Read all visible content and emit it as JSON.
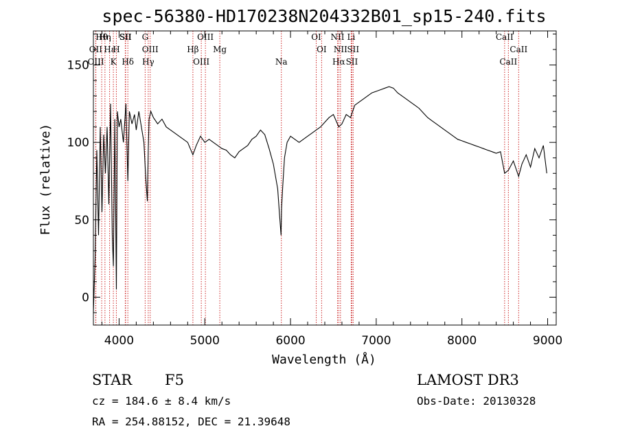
{
  "chart_data": {
    "type": "line",
    "title": "spec-56380-HD170238N204332B01_sp15-240.fits",
    "xlabel": "Wavelength (Å)",
    "ylabel": "Flux (relative)",
    "xlim": [
      3700,
      9100
    ],
    "ylim": [
      -18,
      172
    ],
    "xticks": [
      4000,
      5000,
      6000,
      7000,
      8000,
      9000
    ],
    "yticks": [
      0,
      50,
      100,
      150
    ],
    "series": [
      {
        "name": "flux",
        "x": [
          3700,
          3720,
          3740,
          3760,
          3780,
          3800,
          3820,
          3840,
          3860,
          3880,
          3900,
          3920,
          3933,
          3950,
          3968,
          3980,
          4000,
          4020,
          4050,
          4080,
          4102,
          4120,
          4150,
          4180,
          4200,
          4230,
          4260,
          4290,
          4310,
          4330,
          4340,
          4350,
          4370,
          4400,
          4450,
          4500,
          4550,
          4600,
          4650,
          4700,
          4750,
          4800,
          4861,
          4900,
          4950,
          5000,
          5050,
          5100,
          5150,
          5200,
          5250,
          5300,
          5350,
          5400,
          5450,
          5500,
          5550,
          5600,
          5650,
          5700,
          5750,
          5800,
          5850,
          5870,
          5890,
          5896,
          5910,
          5930,
          5960,
          6000,
          6050,
          6100,
          6150,
          6200,
          6250,
          6300,
          6350,
          6400,
          6450,
          6500,
          6563,
          6600,
          6650,
          6700,
          6750,
          6800,
          6850,
          6900,
          6950,
          7000,
          7050,
          7100,
          7150,
          7200,
          7250,
          7300,
          7350,
          7400,
          7450,
          7500,
          7550,
          7600,
          7650,
          7700,
          7750,
          7800,
          7850,
          7900,
          7950,
          8000,
          8050,
          8100,
          8150,
          8200,
          8250,
          8300,
          8350,
          8400,
          8450,
          8498,
          8542,
          8600,
          8662,
          8700,
          8750,
          8800,
          8850,
          8900,
          8950,
          8990
        ],
        "y": [
          -10,
          25,
          95,
          40,
          110,
          55,
          105,
          80,
          110,
          60,
          125,
          40,
          20,
          115,
          5,
          120,
          110,
          115,
          100,
          125,
          75,
          120,
          112,
          118,
          108,
          120,
          110,
          100,
          78,
          62,
          95,
          115,
          120,
          116,
          112,
          115,
          110,
          108,
          106,
          104,
          102,
          100,
          92,
          98,
          104,
          100,
          102,
          100,
          98,
          96,
          95,
          92,
          90,
          94,
          96,
          98,
          102,
          104,
          108,
          105,
          96,
          86,
          70,
          55,
          40,
          58,
          72,
          90,
          100,
          104,
          102,
          100,
          102,
          104,
          106,
          108,
          110,
          113,
          116,
          118,
          110,
          112,
          118,
          116,
          124,
          126,
          128,
          130,
          132,
          133,
          134,
          135,
          136,
          135,
          132,
          130,
          128,
          126,
          124,
          122,
          119,
          116,
          114,
          112,
          110,
          108,
          106,
          104,
          102,
          101,
          100,
          99,
          98,
          97,
          96,
          95,
          94,
          93,
          94,
          80,
          82,
          88,
          78,
          86,
          92,
          84,
          96,
          90,
          98,
          80
        ]
      }
    ],
    "spectral_lines": [
      {
        "name": "Hθ",
        "wavelength": 3797
      },
      {
        "name": "OII",
        "wavelength": 3727
      },
      {
        "name": "OIII",
        "wavelength": 3729
      },
      {
        "name": "Hη",
        "wavelength": 3835
      },
      {
        "name": "Hε",
        "wavelength": 3889
      },
      {
        "name": "K",
        "wavelength": 3933
      },
      {
        "name": "SII",
        "wavelength": 4072
      },
      {
        "name": "H",
        "wavelength": 3968
      },
      {
        "name": "Hδ",
        "wavelength": 4102
      },
      {
        "name": "SII",
        "wavelength": 4076
      },
      {
        "name": "OIII",
        "wavelength": 4363
      },
      {
        "name": "Hγ",
        "wavelength": 4340
      },
      {
        "name": "G",
        "wavelength": 4304
      },
      {
        "name": "Hβ",
        "wavelength": 4861
      },
      {
        "name": "OIII",
        "wavelength": 4959
      },
      {
        "name": "OIII",
        "wavelength": 5007
      },
      {
        "name": "Mg",
        "wavelength": 5175
      },
      {
        "name": "Na",
        "wavelength": 5893
      },
      {
        "name": "OI",
        "wavelength": 6300
      },
      {
        "name": "OI",
        "wavelength": 6363
      },
      {
        "name": "Hα",
        "wavelength": 6563
      },
      {
        "name": "NII",
        "wavelength": 6548
      },
      {
        "name": "NII",
        "wavelength": 6583
      },
      {
        "name": "SII",
        "wavelength": 6716
      },
      {
        "name": "Li",
        "wavelength": 6708
      },
      {
        "name": "SII",
        "wavelength": 6731
      },
      {
        "name": "CaII",
        "wavelength": 8542
      },
      {
        "name": "CaII",
        "wavelength": 8498
      },
      {
        "name": "CaII",
        "wavelength": 8662
      }
    ]
  },
  "info": {
    "object_type": "STAR",
    "subclass": "F5",
    "survey": "LAMOST DR3",
    "cz": "cz = 184.6 ± 8.4 km/s",
    "obs_date": "Obs-Date: 20130328",
    "coords": "RA = 254.88152, DEC =  21.39648"
  },
  "colors": {
    "line_marker": "#cc2222",
    "spectrum": "#000000",
    "axes": "#000000"
  }
}
